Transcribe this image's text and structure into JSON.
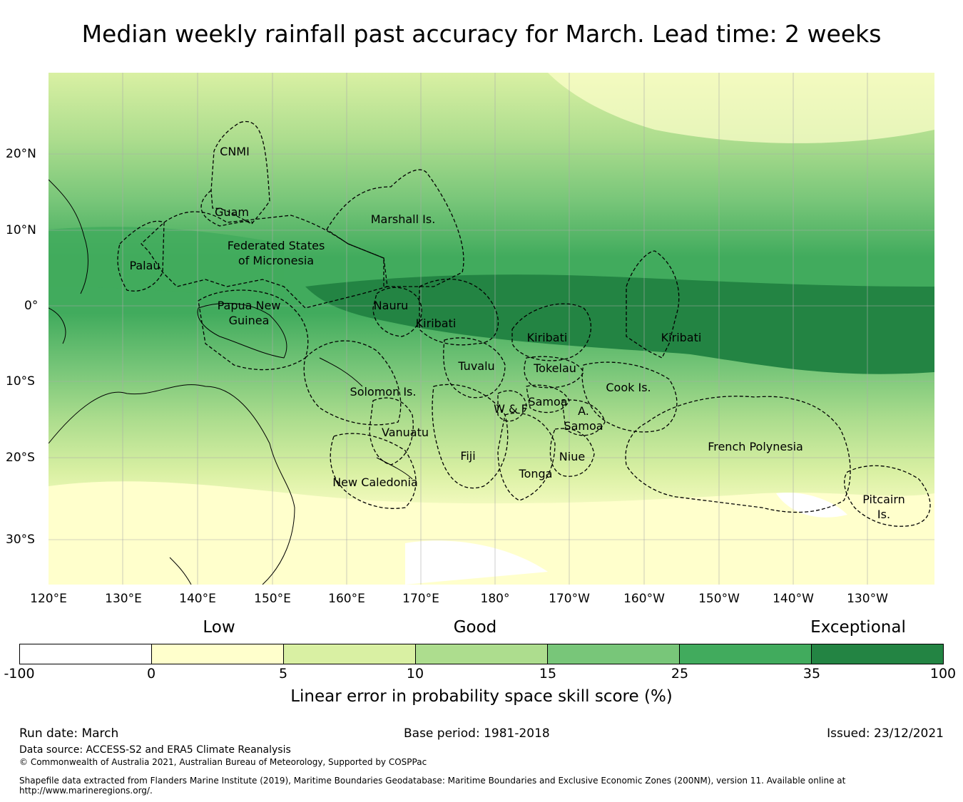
{
  "title": "Median weekly rainfall past accuracy for March. Lead time: 2 weeks",
  "map": {
    "lon_labels": [
      "120°E",
      "130°E",
      "140°E",
      "150°E",
      "160°E",
      "170°E",
      "180°",
      "170°W",
      "160°W",
      "150°W",
      "140°W",
      "130°W"
    ],
    "lat_labels": [
      "20°N",
      "10°N",
      "0°",
      "10°S",
      "20°S",
      "30°S"
    ],
    "regions": [
      "CNMI",
      "Guam",
      "Marshall Is.",
      "Federated States",
      "of Micronesia",
      "Palau",
      "Papua New",
      "Guinea",
      "Nauru",
      "Kiribati",
      "Kiribati",
      "Kiribati",
      "Tuvalu",
      "Tokelau",
      "Cook Is.",
      "Solomon Is.",
      "Samoa",
      "W & F",
      "A.",
      "Samoa",
      "Vanuatu",
      "Fiji",
      "Niue",
      "Tonga",
      "French Polynesia",
      "New Caledonia",
      "Pitcairn",
      "Is."
    ]
  },
  "legend": {
    "categories": [
      "Low",
      "Good",
      "Exceptional"
    ],
    "ticks": [
      "-100",
      "0",
      "5",
      "10",
      "15",
      "25",
      "35",
      "100"
    ],
    "colors": [
      "#ffffff",
      "#ffffcc",
      "#d9f0a3",
      "#addd8e",
      "#78c679",
      "#41ab5d",
      "#238443"
    ],
    "title": "Linear error in probability space skill score (%)"
  },
  "footer": {
    "run_date": "Run date: March",
    "base_period": "Base period: 1981-2018",
    "issued": "Issued: 23/12/2021",
    "data_source": "Data source: ACCESS-S2 and ERA5 Climate Reanalysis",
    "copyright": "© Commonwealth of Australia 2021, Australian Bureau of Meteorology, Supported by COSPPac",
    "shapefile": "Shapefile data extracted from Flanders Marine Institute (2019), Maritime Boundaries Geodatabase: Maritime Boundaries and Exclusive Economic Zones (200NM), version 11. Available online at http://www.marineregions.org/."
  }
}
